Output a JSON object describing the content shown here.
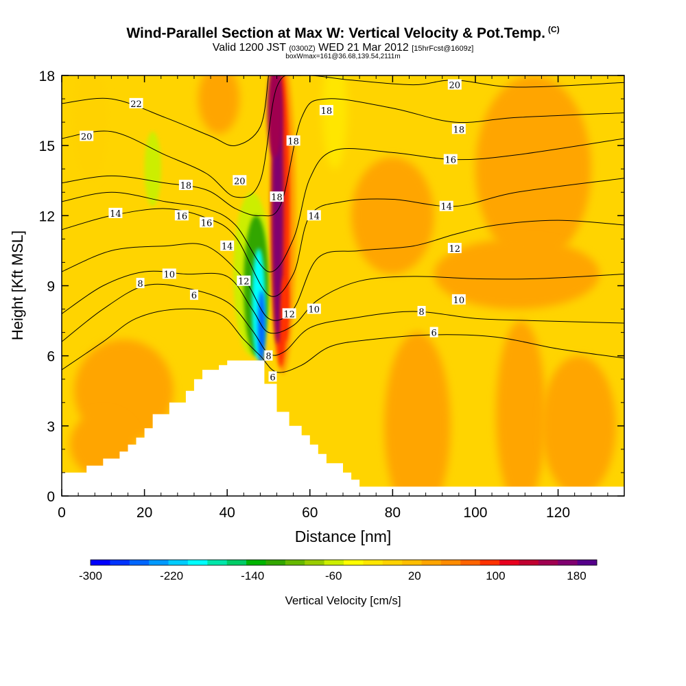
{
  "title": {
    "main": "Wind-Parallel Section at Max W: Vertical Velocity & Pot.Temp.",
    "copyright": "(C)",
    "valid_prefix": "Valid 1200 JST",
    "valid_utc": "(0300Z)",
    "valid_date": "WED 21 Mar 2012",
    "forecast": "[15hrFcst@1609z]",
    "box": "boxWmax=161@36.68,139.54,2111m"
  },
  "chart_data": {
    "type": "heatmap",
    "xlabel": "Distance [nm]",
    "ylabel": "Height [Kft MSL]",
    "xlim": [
      0,
      136
    ],
    "ylim": [
      0,
      18
    ],
    "xticks": [
      0,
      20,
      40,
      60,
      80,
      100,
      120
    ],
    "yticks": [
      0,
      3,
      6,
      9,
      12,
      15,
      18
    ],
    "colorbar": {
      "label": "Vertical Velocity [cm/s]",
      "range": [
        -300,
        200
      ],
      "tick_labels": [
        "-300",
        "-220",
        "-140",
        "-60",
        "20",
        "100",
        "180"
      ],
      "tick_values": [
        -300,
        -220,
        -140,
        -60,
        20,
        100,
        180
      ],
      "colors": [
        "#0000ff",
        "#0033ff",
        "#0066ff",
        "#0099ff",
        "#00ccff",
        "#00ffff",
        "#00e6aa",
        "#00cc66",
        "#00b400",
        "#33a600",
        "#66b800",
        "#99cc00",
        "#ccee00",
        "#ffff00",
        "#ffe600",
        "#ffd200",
        "#ffbe00",
        "#ffa500",
        "#ff8c00",
        "#ff6400",
        "#ff3200",
        "#e8001e",
        "#c00030",
        "#a00050",
        "#800070",
        "#55008a"
      ]
    },
    "velocity_features": [
      {
        "name": "updraft core",
        "x": 51,
        "y_range": [
          7,
          18
        ],
        "peak": 161
      },
      {
        "name": "downdraft core",
        "x": 48,
        "y_range": [
          5,
          11
        ],
        "peak": -240
      }
    ],
    "terrain_steps": [
      [
        0,
        1.0
      ],
      [
        6,
        1.3
      ],
      [
        10,
        1.6
      ],
      [
        14,
        1.9
      ],
      [
        16,
        2.2
      ],
      [
        18,
        2.5
      ],
      [
        20,
        2.9
      ],
      [
        22,
        3.5
      ],
      [
        24,
        3.5
      ],
      [
        26,
        4.0
      ],
      [
        30,
        4.5
      ],
      [
        32,
        5.0
      ],
      [
        34,
        5.4
      ],
      [
        38,
        5.6
      ],
      [
        40,
        5.8
      ],
      [
        44,
        5.8
      ],
      [
        48,
        5.8
      ],
      [
        49,
        4.8
      ],
      [
        51,
        4.8
      ],
      [
        52,
        3.6
      ],
      [
        55,
        3.0
      ],
      [
        58,
        2.6
      ],
      [
        60,
        2.2
      ],
      [
        62,
        1.8
      ],
      [
        64,
        1.4
      ],
      [
        68,
        1.0
      ],
      [
        70,
        0.7
      ],
      [
        72,
        0.4
      ],
      [
        136,
        0.35
      ]
    ],
    "contour_series": [
      {
        "name": "6",
        "points": [
          [
            0,
            5.4
          ],
          [
            10,
            6.6
          ],
          [
            18,
            7.6
          ],
          [
            28,
            8.0
          ],
          [
            38,
            7.8
          ],
          [
            44,
            6.7
          ],
          [
            48,
            6.0
          ],
          [
            52,
            5.3
          ],
          [
            58,
            5.6
          ],
          [
            65,
            6.4
          ],
          [
            75,
            6.7
          ],
          [
            90,
            6.9
          ],
          [
            105,
            6.8
          ],
          [
            120,
            6.3
          ],
          [
            136,
            5.9
          ]
        ]
      },
      {
        "name": "8",
        "points": [
          [
            0,
            6.6
          ],
          [
            10,
            8.0
          ],
          [
            20,
            9.0
          ],
          [
            30,
            8.9
          ],
          [
            40,
            8.3
          ],
          [
            46,
            7.1
          ],
          [
            50,
            6.1
          ],
          [
            54,
            6.2
          ],
          [
            60,
            7.2
          ],
          [
            70,
            7.6
          ],
          [
            85,
            7.9
          ],
          [
            100,
            7.6
          ],
          [
            115,
            7.5
          ],
          [
            136,
            7.4
          ]
        ]
      },
      {
        "name": "10",
        "points": [
          [
            0,
            7.8
          ],
          [
            10,
            9.0
          ],
          [
            20,
            9.6
          ],
          [
            30,
            9.5
          ],
          [
            40,
            9.4
          ],
          [
            46,
            8.0
          ],
          [
            50,
            7.0
          ],
          [
            56,
            7.3
          ],
          [
            62,
            8.4
          ],
          [
            72,
            9.2
          ],
          [
            85,
            9.4
          ],
          [
            100,
            9.3
          ],
          [
            115,
            9.3
          ],
          [
            136,
            9.5
          ]
        ]
      },
      {
        "name": "12",
        "points": [
          [
            0,
            9.6
          ],
          [
            12,
            10.5
          ],
          [
            25,
            10.7
          ],
          [
            35,
            10.7
          ],
          [
            44,
            9.3
          ],
          [
            50,
            7.6
          ],
          [
            56,
            8.0
          ],
          [
            62,
            10.2
          ],
          [
            72,
            10.5
          ],
          [
            85,
            10.7
          ],
          [
            95,
            11.2
          ],
          [
            105,
            11.6
          ],
          [
            120,
            11.8
          ],
          [
            136,
            11.6
          ]
        ]
      },
      {
        "name": "14",
        "points": [
          [
            0,
            11.4
          ],
          [
            12,
            12.0
          ],
          [
            25,
            12.3
          ],
          [
            35,
            11.9
          ],
          [
            42,
            11.1
          ],
          [
            50,
            8.6
          ],
          [
            56,
            9.5
          ],
          [
            60,
            12.0
          ],
          [
            68,
            12.6
          ],
          [
            80,
            12.7
          ],
          [
            95,
            12.4
          ],
          [
            110,
            13.0
          ],
          [
            136,
            13.6
          ]
        ]
      },
      {
        "name": "16",
        "points": [
          [
            0,
            12.6
          ],
          [
            12,
            13.0
          ],
          [
            25,
            12.6
          ],
          [
            35,
            12.3
          ],
          [
            42,
            11.6
          ],
          [
            50,
            9.6
          ],
          [
            56,
            11.0
          ],
          [
            60,
            13.6
          ],
          [
            66,
            14.8
          ],
          [
            80,
            14.7
          ],
          [
            95,
            14.4
          ],
          [
            110,
            14.6
          ],
          [
            136,
            15.3
          ]
        ]
      },
      {
        "name": "18",
        "points": [
          [
            0,
            13.4
          ],
          [
            12,
            13.7
          ],
          [
            25,
            13.4
          ],
          [
            35,
            13.1
          ],
          [
            42,
            12.3
          ],
          [
            48,
            12.0
          ],
          [
            53,
            12.5
          ],
          [
            58,
            16.2
          ],
          [
            64,
            17.0
          ],
          [
            80,
            16.6
          ],
          [
            95,
            16.0
          ],
          [
            110,
            16.2
          ],
          [
            136,
            16.4
          ]
        ]
      },
      {
        "name": "20",
        "points": [
          [
            0,
            15.3
          ],
          [
            12,
            15.6
          ],
          [
            25,
            14.6
          ],
          [
            35,
            13.8
          ],
          [
            42,
            12.8
          ],
          [
            48,
            13.5
          ],
          [
            52,
            17.5
          ],
          [
            58,
            18.0
          ],
          [
            70,
            17.8
          ],
          [
            85,
            17.6
          ],
          [
            95,
            17.8
          ],
          [
            110,
            17.5
          ],
          [
            136,
            17.7
          ]
        ]
      },
      {
        "name": "22",
        "points": [
          [
            0,
            16.8
          ],
          [
            12,
            17.0
          ],
          [
            25,
            16.2
          ],
          [
            36,
            15.4
          ],
          [
            42,
            15.0
          ],
          [
            48,
            15.8
          ],
          [
            50,
            18.0
          ]
        ]
      }
    ],
    "contour_labels": [
      {
        "text": "22",
        "x": 18,
        "y": 16.8
      },
      {
        "text": "20",
        "x": 6,
        "y": 15.4
      },
      {
        "text": "18",
        "x": 30,
        "y": 13.3
      },
      {
        "text": "16",
        "x": 29,
        "y": 12.0
      },
      {
        "text": "16",
        "x": 35,
        "y": 11.7
      },
      {
        "text": "14",
        "x": 13,
        "y": 12.1
      },
      {
        "text": "14",
        "x": 40,
        "y": 10.7
      },
      {
        "text": "10",
        "x": 26,
        "y": 9.5
      },
      {
        "text": "8",
        "x": 19,
        "y": 9.1
      },
      {
        "text": "12",
        "x": 44,
        "y": 9.2
      },
      {
        "text": "6",
        "x": 32,
        "y": 8.6
      },
      {
        "text": "20",
        "x": 43,
        "y": 13.5
      },
      {
        "text": "18",
        "x": 52,
        "y": 12.8
      },
      {
        "text": "18",
        "x": 56,
        "y": 15.2
      },
      {
        "text": "18",
        "x": 64,
        "y": 16.5
      },
      {
        "text": "14",
        "x": 61,
        "y": 12.0
      },
      {
        "text": "12",
        "x": 55,
        "y": 7.8
      },
      {
        "text": "10",
        "x": 61,
        "y": 8.0
      },
      {
        "text": "8",
        "x": 50,
        "y": 6.0
      },
      {
        "text": "6",
        "x": 51,
        "y": 5.1
      },
      {
        "text": "20",
        "x": 95,
        "y": 17.6
      },
      {
        "text": "18",
        "x": 96,
        "y": 15.7
      },
      {
        "text": "16",
        "x": 94,
        "y": 14.4
      },
      {
        "text": "14",
        "x": 93,
        "y": 12.4
      },
      {
        "text": "12",
        "x": 95,
        "y": 10.6
      },
      {
        "text": "10",
        "x": 96,
        "y": 8.4
      },
      {
        "text": "8",
        "x": 87,
        "y": 7.9
      },
      {
        "text": "6",
        "x": 90,
        "y": 7.0
      }
    ]
  }
}
